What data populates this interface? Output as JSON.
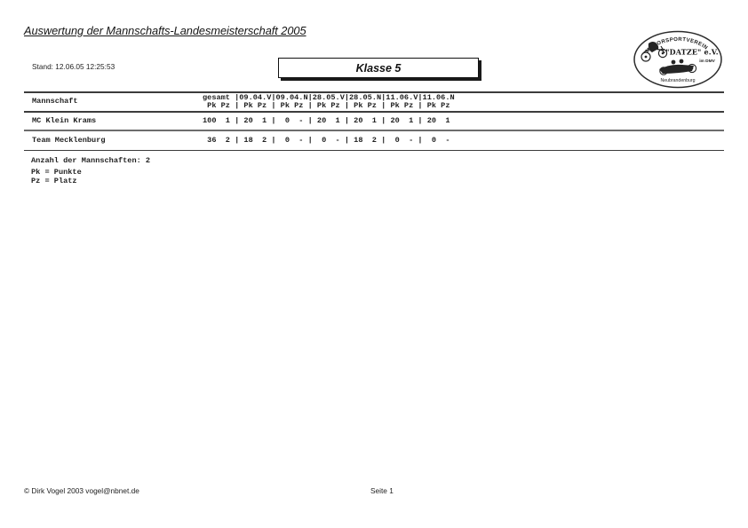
{
  "page": {
    "title": "Auswertung der Mannschafts-Landesmeisterschaft 2005",
    "stand_label": "Stand: 12.06.05 12:25:53",
    "class_label": "Klasse 5"
  },
  "logo": {
    "arc_text": "MOTORSPORTVEREIN",
    "club_name": "\"DATZE\" e.V.",
    "affiliation": "im DMV",
    "city": "Neubrandenburg"
  },
  "table": {
    "team_header": "Mannschaft",
    "sub_pk": "Pk",
    "sub_pz": "Pz",
    "events": [
      "gesamt",
      "09.04.V",
      "09.04.N",
      "28.05.V",
      "28.05.N",
      "11.06.V",
      "11.06.N"
    ],
    "rows": [
      {
        "name": "MC Klein Krams",
        "cells": [
          [
            "100",
            "1"
          ],
          [
            "20",
            "1"
          ],
          [
            "0",
            "-"
          ],
          [
            "20",
            "1"
          ],
          [
            "20",
            "1"
          ],
          [
            "20",
            "1"
          ],
          [
            "20",
            "1"
          ]
        ]
      },
      {
        "name": "Team Mecklenburg",
        "cells": [
          [
            "36",
            "2"
          ],
          [
            "18",
            "2"
          ],
          [
            "0",
            "-"
          ],
          [
            "0",
            "-"
          ],
          [
            "18",
            "2"
          ],
          [
            "0",
            "-"
          ],
          [
            "0",
            "-"
          ]
        ]
      }
    ]
  },
  "summary": {
    "count_line": "Anzahl der Mannschaften: 2",
    "legend_pk": "Pk = Punkte",
    "legend_pz": "Pz = Platz"
  },
  "footer": {
    "copyright": "© Dirk Vogel 2003 vogel@nbnet.de",
    "page_number": "Seite 1"
  }
}
